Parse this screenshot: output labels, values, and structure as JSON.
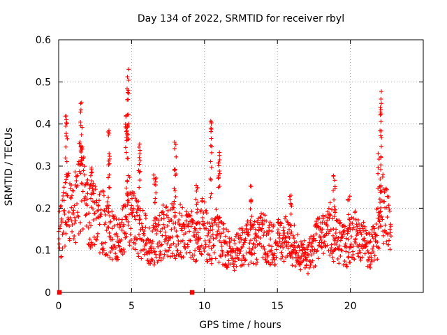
{
  "chart_data": {
    "type": "scatter",
    "title": "Day 134 of 2022, SRMTID for receiver rbyl",
    "xlabel": "GPS time / hours",
    "ylabel": "SRMTID / TECUs",
    "xlim": [
      0,
      25
    ],
    "ylim": [
      0,
      0.6
    ],
    "xticks": [
      0,
      5,
      10,
      15,
      20
    ],
    "xtick_labels": [
      "0",
      "5",
      "10",
      "15",
      "20"
    ],
    "yticks": [
      0,
      0.1,
      0.2,
      0.3,
      0.4,
      0.5,
      0.6
    ],
    "ytick_labels": [
      "0",
      "0.1",
      "0.2",
      "0.3",
      "0.4",
      "0.5",
      "0.6"
    ],
    "grid": true,
    "series_color": "#ff0000",
    "marker": "plus",
    "baseline_markers": [
      {
        "x": 0.05,
        "y": 0.0
      },
      {
        "x": 9.15,
        "y": 0.0
      }
    ],
    "profile": [
      [
        0.0,
        0.13
      ],
      [
        0.3,
        0.16
      ],
      [
        0.6,
        0.24
      ],
      [
        0.9,
        0.18
      ],
      [
        1.2,
        0.21
      ],
      [
        1.5,
        0.26
      ],
      [
        1.8,
        0.22
      ],
      [
        2.1,
        0.17
      ],
      [
        2.4,
        0.2
      ],
      [
        2.7,
        0.16
      ],
      [
        3.0,
        0.17
      ],
      [
        3.3,
        0.15
      ],
      [
        3.6,
        0.14
      ],
      [
        3.9,
        0.13
      ],
      [
        4.2,
        0.13
      ],
      [
        4.5,
        0.15
      ],
      [
        4.8,
        0.2
      ],
      [
        5.1,
        0.17
      ],
      [
        5.4,
        0.16
      ],
      [
        5.7,
        0.14
      ],
      [
        6.0,
        0.13
      ],
      [
        6.3,
        0.11
      ],
      [
        6.6,
        0.12
      ],
      [
        6.9,
        0.13
      ],
      [
        7.2,
        0.15
      ],
      [
        7.5,
        0.14
      ],
      [
        7.8,
        0.15
      ],
      [
        8.1,
        0.14
      ],
      [
        8.4,
        0.15
      ],
      [
        8.7,
        0.14
      ],
      [
        9.0,
        0.14
      ],
      [
        9.3,
        0.13
      ],
      [
        9.6,
        0.14
      ],
      [
        9.9,
        0.17
      ],
      [
        10.2,
        0.13
      ],
      [
        10.5,
        0.12
      ],
      [
        10.8,
        0.14
      ],
      [
        11.1,
        0.12
      ],
      [
        11.4,
        0.11
      ],
      [
        11.7,
        0.1
      ],
      [
        12.0,
        0.09
      ],
      [
        12.3,
        0.1
      ],
      [
        12.6,
        0.11
      ],
      [
        12.9,
        0.12
      ],
      [
        13.2,
        0.11
      ],
      [
        13.5,
        0.12
      ],
      [
        13.8,
        0.13
      ],
      [
        14.1,
        0.13
      ],
      [
        14.4,
        0.12
      ],
      [
        14.7,
        0.11
      ],
      [
        15.0,
        0.12
      ],
      [
        15.3,
        0.12
      ],
      [
        15.6,
        0.13
      ],
      [
        15.9,
        0.12
      ],
      [
        16.2,
        0.11
      ],
      [
        16.5,
        0.1
      ],
      [
        16.8,
        0.09
      ],
      [
        17.1,
        0.08
      ],
      [
        17.4,
        0.1
      ],
      [
        17.7,
        0.12
      ],
      [
        18.0,
        0.13
      ],
      [
        18.3,
        0.14
      ],
      [
        18.6,
        0.15
      ],
      [
        18.9,
        0.13
      ],
      [
        19.2,
        0.12
      ],
      [
        19.5,
        0.11
      ],
      [
        19.8,
        0.11
      ],
      [
        20.1,
        0.13
      ],
      [
        20.4,
        0.14
      ],
      [
        20.7,
        0.13
      ],
      [
        21.0,
        0.11
      ],
      [
        21.3,
        0.1
      ],
      [
        21.6,
        0.11
      ],
      [
        21.9,
        0.15
      ],
      [
        22.2,
        0.2
      ],
      [
        22.5,
        0.18
      ],
      [
        22.8,
        0.16
      ]
    ],
    "spikes": [
      {
        "x": 0.55,
        "peak": 0.42,
        "width": 0.18
      },
      {
        "x": 1.55,
        "peak": 0.47,
        "width": 0.15
      },
      {
        "x": 2.25,
        "peak": 0.31,
        "width": 0.2
      },
      {
        "x": 3.45,
        "peak": 0.39,
        "width": 0.12
      },
      {
        "x": 4.75,
        "peak": 0.545,
        "width": 0.12
      },
      {
        "x": 4.65,
        "peak": 0.42,
        "width": 0.2
      },
      {
        "x": 5.55,
        "peak": 0.36,
        "width": 0.15
      },
      {
        "x": 6.6,
        "peak": 0.29,
        "width": 0.2
      },
      {
        "x": 8.0,
        "peak": 0.36,
        "width": 0.15
      },
      {
        "x": 9.5,
        "peak": 0.26,
        "width": 0.2
      },
      {
        "x": 10.45,
        "peak": 0.41,
        "width": 0.12
      },
      {
        "x": 11.0,
        "peak": 0.34,
        "width": 0.12
      },
      {
        "x": 13.2,
        "peak": 0.255,
        "width": 0.12
      },
      {
        "x": 15.9,
        "peak": 0.24,
        "width": 0.15
      },
      {
        "x": 18.9,
        "peak": 0.29,
        "width": 0.15
      },
      {
        "x": 19.9,
        "peak": 0.23,
        "width": 0.15
      },
      {
        "x": 22.1,
        "peak": 0.48,
        "width": 0.14
      },
      {
        "x": 22.0,
        "peak": 0.33,
        "width": 0.22
      }
    ],
    "approx_points_per_hour": 60,
    "x_data_range": [
      0.0,
      22.8
    ]
  }
}
